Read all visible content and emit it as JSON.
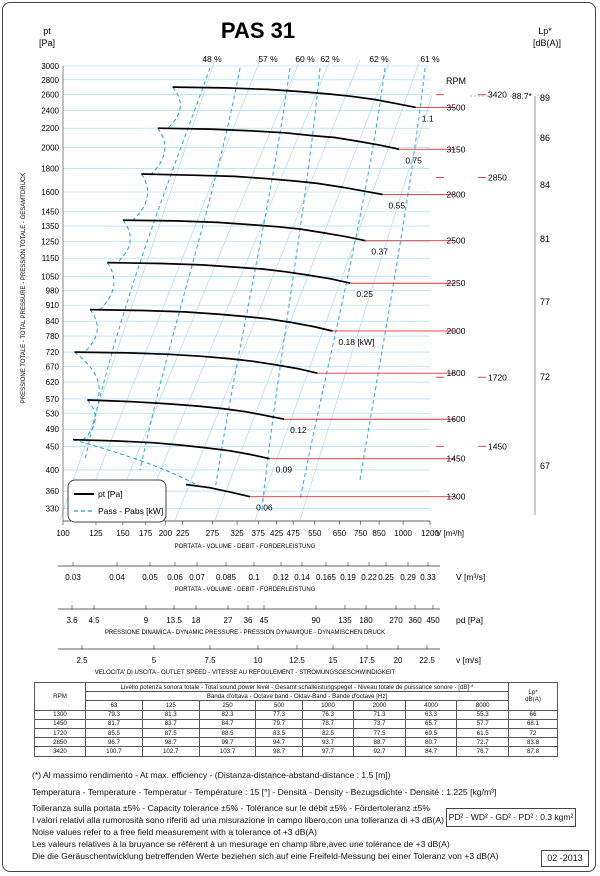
{
  "title": "PAS 31",
  "left_unit": [
    "pt",
    "[Pa]"
  ],
  "right_unit": [
    "Lp*",
    "[dB(A)]"
  ],
  "rpm_label": "RPM",
  "left_axis_title": "PRESSIONE TOTALE - TOTAL PRESSURE - PRESSION TOTALE - GESAMTDRUCK",
  "chart_data": {
    "type": "line",
    "title": "PAS 31",
    "y_scale": "log",
    "x_scale": "log",
    "y_ticks": [
      330,
      360,
      400,
      450,
      490,
      530,
      570,
      620,
      670,
      720,
      780,
      840,
      910,
      980,
      1050,
      1150,
      1250,
      1350,
      1450,
      1600,
      1800,
      2000,
      2200,
      2400,
      2600,
      2800,
      3000
    ],
    "x_ticks": [
      "100",
      "125",
      "150",
      "175",
      "200",
      "225",
      "275",
      "325",
      "375",
      "425",
      "475",
      "550",
      "650",
      "750",
      "850",
      "1000",
      "1200"
    ],
    "xlabel": "V [m³/h]",
    "xlabel_sub": "PORTATA - VOLUME - DEBIT - FORDERLEISTUNG",
    "efficiency_labels": [
      "48 %",
      "57 %",
      "60 %",
      "62 %",
      "62 %",
      "61 %"
    ],
    "series": [
      {
        "name": "pt [Pa]",
        "rpm": "3500",
        "power": "1.1",
        "x": [
          210,
          300,
          400,
          500,
          600,
          700,
          820,
          950,
          1090
        ],
        "y": [
          2700,
          2690,
          2670,
          2640,
          2610,
          2580,
          2540,
          2490,
          2440
        ]
      },
      {
        "name": "pt [Pa]",
        "rpm": "3150",
        "power": "0.75",
        "x": [
          190,
          270,
          360,
          450,
          540,
          630,
          740,
          860,
          975
        ],
        "y": [
          2200,
          2190,
          2170,
          2150,
          2120,
          2100,
          2060,
          2020,
          1980
        ]
      },
      {
        "name": "pt [Pa]",
        "rpm": "2800",
        "power": "0.55",
        "x": [
          170,
          240,
          320,
          400,
          480,
          560,
          660,
          760,
          870
        ],
        "y": [
          1750,
          1740,
          1730,
          1710,
          1690,
          1670,
          1640,
          1610,
          1580
        ]
      },
      {
        "name": "pt [Pa]",
        "rpm": "2500",
        "power": "0.37",
        "x": [
          150,
          215,
          285,
          355,
          430,
          500,
          585,
          680,
          775
        ],
        "y": [
          1390,
          1385,
          1375,
          1360,
          1345,
          1330,
          1305,
          1280,
          1255
        ]
      },
      {
        "name": "pt [Pa]",
        "rpm": "2250",
        "power": "0.25",
        "x": [
          135,
          195,
          256,
          320,
          386,
          450,
          526,
          612,
          700
        ],
        "y": [
          1125,
          1120,
          1112,
          1100,
          1090,
          1075,
          1057,
          1038,
          1015
        ]
      },
      {
        "name": "pt [Pa]",
        "rpm": "2000",
        "power": "0.18 [kW]",
        "x": [
          120,
          172,
          228,
          285,
          343,
          400,
          468,
          544,
          620
        ],
        "y": [
          890,
          886,
          880,
          870,
          860,
          850,
          835,
          818,
          800
        ]
      },
      {
        "name": "pt [Pa]",
        "rpm": "1800",
        "power": "",
        "x": [
          108,
          155,
          205,
          256,
          308,
          360,
          420,
          490,
          560
        ],
        "y": [
          720,
          717,
          712,
          705,
          697,
          688,
          676,
          663,
          648
        ]
      },
      {
        "name": "pt [Pa]",
        "rpm": "1600",
        "power": "0.12",
        "x": [
          118,
          160,
          205,
          250,
          295,
          343,
          393,
          447
        ],
        "y": [
          567,
          562,
          556,
          550,
          543,
          535,
          525,
          515
        ]
      },
      {
        "name": "pt [Pa]",
        "rpm": "1450",
        "power": "0.09",
        "x": [
          107,
          145,
          186,
          226,
          268,
          310,
          356,
          405
        ],
        "y": [
          465,
          462,
          458,
          452,
          446,
          440,
          432,
          423
        ]
      },
      {
        "name": "pt [Pa]",
        "rpm": "1300",
        "power": "0.06",
        "x": [
          230,
          270,
          310,
          355
        ],
        "y": [
          372,
          366,
          358,
          350
        ]
      }
    ],
    "rpm_values": [
      "3500",
      "3150",
      "2800",
      "2500",
      "2250",
      "2000",
      "1800",
      "1600",
      "1450",
      "1300"
    ],
    "noise_markers": [
      {
        "rpm": "3420",
        "y": 2600
      },
      {
        "rpm": "2850",
        "y": 1720
      },
      {
        "rpm": "1720",
        "y": 635
      },
      {
        "rpm": "1450",
        "y": 450
      }
    ],
    "sound_levels": [
      "89",
      "86",
      "84",
      "81",
      "77",
      "72",
      "67"
    ],
    "peak_label": "88.7*",
    "legend": [
      {
        "label": "pt [Pa]",
        "style": "solid",
        "color": "#000000"
      },
      {
        "label": "Pass - Pabs [kW]",
        "style": "dashed",
        "color": "#1a9fe0"
      }
    ],
    "grid_color": "#9fd5f0",
    "accent_red": "#e0303a"
  },
  "scales": {
    "velocity_axis": {
      "ticks": [
        "0.03",
        "0.04",
        "0.05",
        "0.06",
        "0.07",
        "0.085",
        "0.1",
        "0.12",
        "0.14",
        "0.165",
        "0.19",
        "0.22",
        "0.25",
        "0.29",
        "0.33"
      ],
      "unit": "V  [m³/s]",
      "caption": "PORTATA - VOLUME - DEBIT - FORDERLEISTUNG"
    },
    "dynamic_axis": {
      "ticks": [
        "3.6",
        "4.5",
        "9",
        "13.5",
        "18",
        "27",
        "36",
        "45",
        "90",
        "135",
        "180",
        "270",
        "360",
        "450"
      ],
      "unit": "pd  [Pa]",
      "caption": "PRESSIONE DINAMICA - DYNAMIC PRESSURE - PRESSION DYNAMIQUE - DYNAMISCHEN DRUCK"
    },
    "speed_axis": {
      "ticks": [
        "2.5",
        "5",
        "7.5",
        "10",
        "12.5",
        "15",
        "17.5",
        "20",
        "22.5"
      ],
      "unit": "v  [m/s]",
      "caption": "VELOCITA' DI USCITA - OUTLET SPEED - VITESSE AU REFOULEMENT - STROMUNGSGESCHWINDIGKEIT"
    }
  },
  "noise_table": {
    "header": "Livello potenza sonora totale - Total sound power level - Gesamt schalleistungspegel - Niveau totale de puissance sonore - [dB]  *",
    "rpm_label": "RPM",
    "band_label": "Banda d'ottava - Octave band - Oktav-Band - Bande d'octave [Hz]",
    "lp_label": "Lp*",
    "lp_unit": "dB(A)",
    "bands": [
      "63",
      "125",
      "250",
      "500",
      "1000",
      "2000",
      "4000",
      "8000"
    ],
    "rows": [
      {
        "rpm": "1300",
        "values": [
          "79.3",
          "81.3",
          "82.3",
          "77.3",
          "76.3",
          "71.3",
          "63.3",
          "55.3"
        ],
        "lp": "66"
      },
      {
        "rpm": "1450",
        "values": [
          "81.7",
          "83.7",
          "84.7",
          "79.7",
          "78.7",
          "73.7",
          "65.7",
          "57.7"
        ],
        "lp": "68.1"
      },
      {
        "rpm": "1720",
        "values": [
          "85.5",
          "87.5",
          "88.5",
          "83.5",
          "82.5",
          "77.5",
          "69.5",
          "61.5"
        ],
        "lp": "72"
      },
      {
        "rpm": "2850",
        "values": [
          "96.7",
          "98.7",
          "99.7",
          "94.7",
          "93.7",
          "88.7",
          "80.7",
          "72.7"
        ],
        "lp": "83.8"
      },
      {
        "rpm": "3420",
        "values": [
          "100.7",
          "102.7",
          "103.7",
          "98.7",
          "97.7",
          "92.7",
          "84.7",
          "76.7"
        ],
        "lp": "87.8"
      }
    ]
  },
  "notes": {
    "efficiency": "(*) Al massimo rendimento - At max. efficiency - (Distanza-distance-abstand-distance : 1.5 [m])",
    "conditions": "Temperatura - Temperature - Temperatur - Température : 15 [°]  -  Densità - Density - Bezugsdichte - Densité : 1.225 [kg/m³]",
    "tolerance": "Tolleranza sulla portata  ±5% - Capacity tolerance ±5% - Tolérance sur le débit ±5% - Fördertoleranz ±5%",
    "lines": [
      "I valori relativi alla rumorosità sono riferiti ad una misurazione in campo libero,con una tolleranza di +3 dB(A)",
      "Noise values refer to a free field measurement with a tolerance of +3 dB(A)",
      "Les valeurs relatives à la bruyance se référent à un mesurage en champ libre,avec une tolérance de +3 dB(A)",
      "Die die Geräuschentwicklung betreffenden Werte beziehen sich auf eine Freifeld-Messung bei einer Toleranz von +3 dB(A)"
    ],
    "inertia": "PD² · WD² - GD² · PD²  :  0.3 kgm²",
    "date": "02 -2013"
  }
}
